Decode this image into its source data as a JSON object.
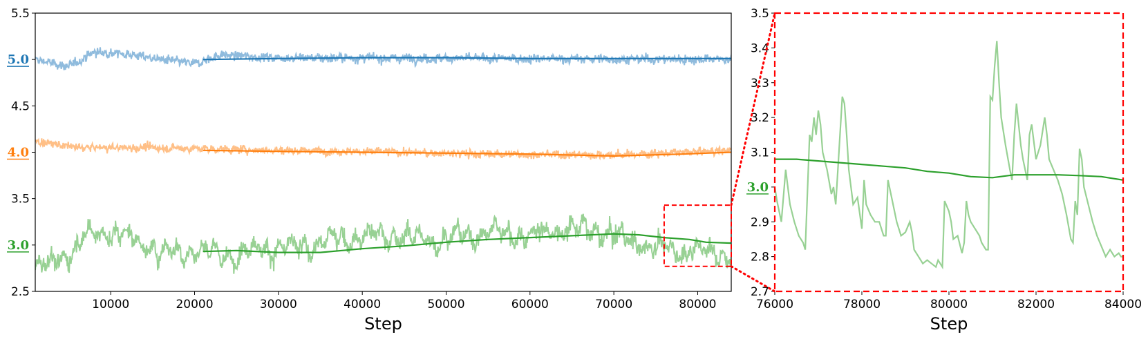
{
  "chart_data": [
    {
      "type": "line",
      "xlabel": "Step",
      "ylabel": "",
      "xlim": [
        1000,
        84000
      ],
      "ylim": [
        2.5,
        5.5
      ],
      "xticks": [
        10000,
        20000,
        30000,
        40000,
        50000,
        60000,
        70000,
        80000
      ],
      "yticks": [
        2.5,
        3.0,
        3.5,
        4.0,
        4.5,
        5.0,
        5.5
      ],
      "highlighted_ticks": [
        {
          "value": 5.0,
          "label": "5.0",
          "color": "#1f77b4"
        },
        {
          "value": 4.0,
          "label": "4.0",
          "color": "#ff7f0e"
        },
        {
          "value": 3.0,
          "label": "3.0",
          "color": "#2ca02c"
        }
      ],
      "series": [
        {
          "color": "#1f77b4",
          "raw_color": "#8fbbdd",
          "raw_x_range": [
            1000,
            84000
          ],
          "raw_anchors": [
            [
              1000,
              5.0
            ],
            [
              5000,
              4.92
            ],
            [
              8000,
              5.08
            ],
            [
              12000,
              5.06
            ],
            [
              16000,
              5.0
            ],
            [
              20000,
              4.95
            ],
            [
              23000,
              5.05
            ],
            [
              30000,
              5.02
            ],
            [
              84000,
              5.0
            ]
          ],
          "smoothed_x": [
            21000,
            30000,
            40000,
            50000,
            60000,
            70000,
            84000
          ],
          "smoothed_y": [
            5.0,
            5.01,
            5.02,
            5.02,
            5.01,
            5.01,
            5.01
          ]
        },
        {
          "color": "#ff7f0e",
          "raw_color": "#ffbf86",
          "raw_x_range": [
            1000,
            84000
          ],
          "raw_anchors": [
            [
              1000,
              4.12
            ],
            [
              6000,
              4.05
            ],
            [
              15000,
              4.05
            ],
            [
              25000,
              4.03
            ],
            [
              40000,
              4.01
            ],
            [
              55000,
              3.98
            ],
            [
              70000,
              3.97
            ],
            [
              84000,
              4.02
            ]
          ],
          "smoothed_x": [
            21000,
            30000,
            40000,
            50000,
            60000,
            70000,
            78000,
            84000
          ],
          "smoothed_y": [
            4.02,
            4.01,
            4.0,
            3.99,
            3.98,
            3.96,
            3.98,
            4.0
          ]
        },
        {
          "color": "#2ca02c",
          "raw_color": "#98d194",
          "raw_x_range": [
            1000,
            84000
          ],
          "raw_anchors": [
            [
              1000,
              2.75
            ],
            [
              4000,
              2.85
            ],
            [
              8000,
              3.15
            ],
            [
              12000,
              3.1
            ],
            [
              16000,
              2.92
            ],
            [
              20000,
              2.95
            ],
            [
              24000,
              2.88
            ],
            [
              28000,
              2.98
            ],
            [
              32000,
              2.95
            ],
            [
              36000,
              3.05
            ],
            [
              40000,
              3.1
            ],
            [
              44000,
              3.1
            ],
            [
              48000,
              3.05
            ],
            [
              52000,
              3.1
            ],
            [
              56000,
              3.15
            ],
            [
              60000,
              3.1
            ],
            [
              64000,
              3.18
            ],
            [
              68000,
              3.15
            ],
            [
              72000,
              3.05
            ],
            [
              76000,
              2.95
            ],
            [
              80000,
              2.95
            ],
            [
              84000,
              2.88
            ]
          ],
          "smoothed_x": [
            21000,
            25000,
            30000,
            35000,
            40000,
            45000,
            50000,
            55000,
            60000,
            65000,
            70000,
            73000,
            76000,
            79000,
            81000,
            84000
          ],
          "smoothed_y": [
            2.93,
            2.94,
            2.92,
            2.92,
            2.96,
            2.99,
            3.03,
            3.06,
            3.08,
            3.1,
            3.12,
            3.11,
            3.08,
            3.06,
            3.03,
            3.02
          ]
        }
      ],
      "zoom_box": {
        "x": [
          76000,
          84000
        ],
        "y": [
          2.77,
          3.43
        ],
        "color": "#ff0000"
      }
    },
    {
      "type": "line",
      "xlabel": "Step",
      "ylabel": "",
      "xlim": [
        76000,
        84000
      ],
      "ylim": [
        2.7,
        3.5
      ],
      "xticks": [
        76000,
        78000,
        80000,
        82000,
        84000
      ],
      "yticks": [
        2.7,
        2.8,
        2.9,
        3.0,
        3.1,
        3.2,
        3.3,
        3.4,
        3.5
      ],
      "highlighted_ticks": [
        {
          "value": 3.0,
          "label": "3.0",
          "color": "#2ca02c"
        }
      ],
      "series": [
        {
          "color": "#2ca02c",
          "raw_color": "#98d194",
          "raw_x": [
            76000,
            76050,
            76150,
            76250,
            76350,
            76450,
            76550,
            76650,
            76700,
            76800,
            76850,
            76900,
            76950,
            77000,
            77050,
            77100,
            77200,
            77300,
            77350,
            77400,
            77450,
            77550,
            77600,
            77650,
            77700,
            77800,
            77900,
            78000,
            78050,
            78100,
            78200,
            78300,
            78400,
            78450,
            78500,
            78550,
            78600,
            78700,
            78800,
            78900,
            79000,
            79100,
            79150,
            79200,
            79300,
            79400,
            79500,
            79600,
            79700,
            79750,
            79800,
            79850,
            79900,
            80000,
            80050,
            80100,
            80200,
            80300,
            80350,
            80400,
            80450,
            80500,
            80600,
            80700,
            80750,
            80800,
            80850,
            80900,
            80950,
            81000,
            81050,
            81100,
            81150,
            81200,
            81300,
            81400,
            81450,
            81500,
            81550,
            81600,
            81650,
            81700,
            81800,
            81850,
            81900,
            82000,
            82100,
            82200,
            82250,
            82300,
            82400,
            82500,
            82600,
            82700,
            82800,
            82850,
            82900,
            82950,
            83000,
            83050,
            83100,
            83200,
            83300,
            83400,
            83500,
            83600,
            83700,
            83800,
            83900,
            83950,
            84000
          ],
          "raw_y": [
            3.0,
            2.96,
            2.9,
            3.05,
            2.95,
            2.9,
            2.86,
            2.84,
            2.82,
            3.15,
            3.13,
            3.2,
            3.15,
            3.22,
            3.18,
            3.1,
            3.05,
            2.98,
            3.0,
            2.95,
            3.05,
            3.26,
            3.24,
            3.15,
            3.05,
            2.95,
            2.97,
            2.88,
            3.02,
            2.95,
            2.92,
            2.9,
            2.9,
            2.88,
            2.86,
            2.86,
            3.02,
            2.96,
            2.9,
            2.86,
            2.87,
            2.9,
            2.87,
            2.82,
            2.8,
            2.78,
            2.79,
            2.78,
            2.77,
            2.79,
            2.78,
            2.77,
            2.96,
            2.93,
            2.9,
            2.85,
            2.86,
            2.81,
            2.84,
            2.96,
            2.92,
            2.9,
            2.88,
            2.86,
            2.84,
            2.83,
            2.82,
            2.82,
            3.26,
            3.25,
            3.35,
            3.42,
            3.3,
            3.2,
            3.12,
            3.05,
            3.02,
            3.15,
            3.24,
            3.18,
            3.12,
            3.08,
            3.02,
            3.15,
            3.18,
            3.08,
            3.12,
            3.2,
            3.15,
            3.08,
            3.05,
            3.02,
            2.98,
            2.92,
            2.85,
            2.84,
            2.96,
            2.92,
            3.11,
            3.08,
            3.0,
            2.95,
            2.9,
            2.86,
            2.83,
            2.8,
            2.82,
            2.8,
            2.81,
            2.8,
            2.8
          ],
          "smoothed_x": [
            76000,
            76500,
            77000,
            77500,
            78000,
            78500,
            79000,
            79500,
            80000,
            80500,
            81000,
            81500,
            82000,
            82500,
            83000,
            83500,
            84000
          ],
          "smoothed_y": [
            3.08,
            3.08,
            3.075,
            3.07,
            3.065,
            3.06,
            3.055,
            3.045,
            3.04,
            3.03,
            3.027,
            3.035,
            3.035,
            3.035,
            3.033,
            3.03,
            3.02
          ]
        }
      ],
      "frame_color": "#ff0000"
    }
  ]
}
